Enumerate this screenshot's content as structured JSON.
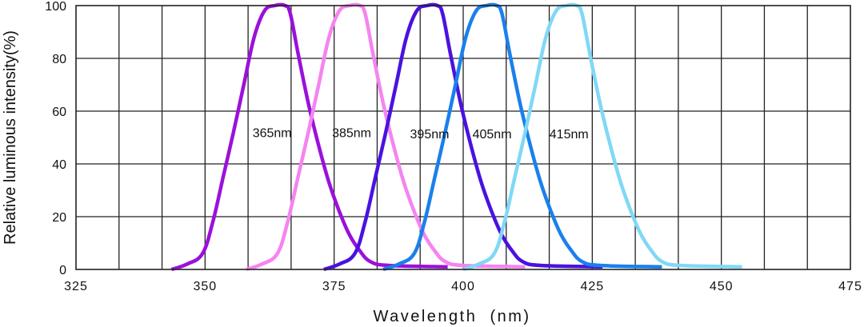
{
  "chart_data": {
    "type": "line",
    "title": "",
    "xlabel": "Wavelength  (nm)",
    "ylabel": "Relative luminous intensity(%)",
    "xlim": [
      325,
      475
    ],
    "ylim": [
      0,
      100
    ],
    "xticks": [
      325,
      350,
      375,
      400,
      425,
      450,
      475
    ],
    "yticks": [
      0,
      20,
      40,
      60,
      80,
      100
    ],
    "grid": true,
    "grid_x_step": 8.333,
    "grid_y_step": 20,
    "legend": "none",
    "series": [
      {
        "name": "365nm",
        "color": "#9b10dc",
        "points": [
          [
            343.5,
            0
          ],
          [
            346.5,
            2
          ],
          [
            349.5,
            6
          ],
          [
            351.5,
            18
          ],
          [
            353.5,
            35
          ],
          [
            355.5,
            52
          ],
          [
            357.5,
            70
          ],
          [
            359.5,
            88
          ],
          [
            361.5,
            98
          ],
          [
            363.5,
            100
          ],
          [
            365.5,
            100
          ],
          [
            366.5,
            97
          ],
          [
            368,
            82
          ],
          [
            370,
            63
          ],
          [
            372,
            47
          ],
          [
            374,
            33
          ],
          [
            376,
            22
          ],
          [
            378,
            13
          ],
          [
            380,
            7
          ],
          [
            382,
            3
          ],
          [
            385.5,
            1.5
          ],
          [
            397,
            1
          ]
        ]
      },
      {
        "name": "385nm",
        "color": "#f584f0",
        "points": [
          [
            358,
            0
          ],
          [
            361,
            2
          ],
          [
            364,
            6
          ],
          [
            366,
            18
          ],
          [
            368,
            35
          ],
          [
            370,
            52
          ],
          [
            372,
            70
          ],
          [
            374,
            88
          ],
          [
            376,
            98
          ],
          [
            378,
            100
          ],
          [
            380,
            100
          ],
          [
            381,
            97
          ],
          [
            382.5,
            82
          ],
          [
            384.5,
            63
          ],
          [
            386.5,
            47
          ],
          [
            388.5,
            33
          ],
          [
            390.5,
            22
          ],
          [
            392.5,
            13
          ],
          [
            394.5,
            7
          ],
          [
            396.5,
            3
          ],
          [
            400,
            1.5
          ],
          [
            412,
            1
          ]
        ]
      },
      {
        "name": "395nm",
        "color": "#4a12e0",
        "points": [
          [
            373,
            0
          ],
          [
            376,
            2
          ],
          [
            379,
            6
          ],
          [
            381,
            18
          ],
          [
            383,
            35
          ],
          [
            385,
            52
          ],
          [
            387,
            70
          ],
          [
            389,
            88
          ],
          [
            391,
            98
          ],
          [
            393,
            100
          ],
          [
            395,
            100
          ],
          [
            396,
            97
          ],
          [
            397.5,
            82
          ],
          [
            399.5,
            63
          ],
          [
            401.5,
            47
          ],
          [
            403.5,
            33
          ],
          [
            405.5,
            22
          ],
          [
            407.5,
            13
          ],
          [
            409.5,
            7
          ],
          [
            411.5,
            3
          ],
          [
            415,
            1.5
          ],
          [
            427,
            1
          ]
        ]
      },
      {
        "name": "405nm",
        "color": "#1a80ec",
        "points": [
          [
            384.5,
            0
          ],
          [
            387.5,
            2
          ],
          [
            390.5,
            6
          ],
          [
            392.5,
            18
          ],
          [
            394.5,
            35
          ],
          [
            396.5,
            52
          ],
          [
            398.5,
            70
          ],
          [
            400.5,
            88
          ],
          [
            402.5,
            98
          ],
          [
            404.5,
            100
          ],
          [
            406.5,
            100
          ],
          [
            407.5,
            97
          ],
          [
            409,
            82
          ],
          [
            411,
            63
          ],
          [
            413,
            47
          ],
          [
            415,
            33
          ],
          [
            417,
            22
          ],
          [
            419,
            13
          ],
          [
            421,
            7
          ],
          [
            423,
            3
          ],
          [
            426.5,
            1.5
          ],
          [
            438.5,
            1
          ]
        ]
      },
      {
        "name": "415nm",
        "color": "#80d8f6",
        "points": [
          [
            400,
            0
          ],
          [
            403,
            2
          ],
          [
            406,
            6
          ],
          [
            408,
            18
          ],
          [
            410,
            35
          ],
          [
            412,
            52
          ],
          [
            414,
            70
          ],
          [
            416,
            88
          ],
          [
            418,
            98
          ],
          [
            420,
            100
          ],
          [
            422,
            100
          ],
          [
            423,
            97
          ],
          [
            424.5,
            82
          ],
          [
            426.5,
            63
          ],
          [
            428.5,
            47
          ],
          [
            430.5,
            33
          ],
          [
            432.5,
            22
          ],
          [
            434.5,
            13
          ],
          [
            436.5,
            7
          ],
          [
            438.5,
            3
          ],
          [
            442,
            1.5
          ],
          [
            454,
            1
          ]
        ]
      }
    ],
    "annotations": [
      {
        "text": "365nm",
        "x": 359.2,
        "y": 52
      },
      {
        "text": "385nm",
        "x": 374.6,
        "y": 52
      },
      {
        "text": "395nm",
        "x": 389.7,
        "y": 51.5
      },
      {
        "text": "405nm",
        "x": 401.8,
        "y": 51.5
      },
      {
        "text": "415nm",
        "x": 416.7,
        "y": 51.5
      }
    ]
  }
}
